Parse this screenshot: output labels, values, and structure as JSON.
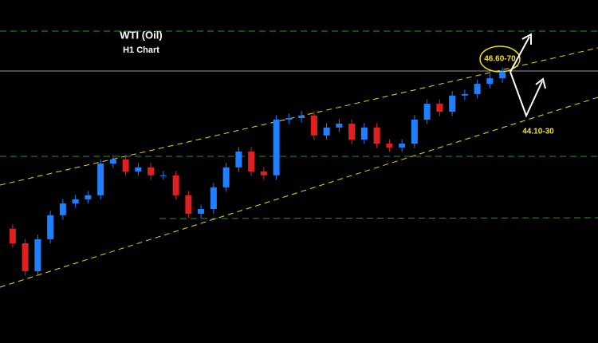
{
  "chart_data": {
    "type": "candlestick",
    "title": "WTI (Oil)",
    "subtitle": "H1 Chart",
    "annotations": [
      "46.60-70",
      "44.10-30"
    ],
    "up_color": "#1e7fff",
    "down_color": "#e02020",
    "ylim": [
      37.0,
      48.7
    ],
    "open": [
      40.9,
      40.4,
      39.45,
      40.54,
      41.36,
      41.76,
      41.9,
      42.04,
      43.12,
      43.26,
      42.85,
      42.99,
      42.72,
      42.72,
      42.04,
      41.41,
      41.57,
      42.31,
      42.99,
      43.53,
      42.85,
      42.72,
      44.62,
      44.67,
      44.76,
      44.08,
      44.35,
      44.48,
      43.94,
      44.35,
      43.8,
      43.67,
      43.8,
      44.62,
      45.16,
      44.89,
      45.44,
      45.49,
      45.84,
      46.03
    ],
    "high": [
      41.05,
      40.55,
      40.69,
      41.51,
      41.91,
      42.05,
      42.19,
      43.27,
      43.41,
      43.41,
      43.14,
      43.14,
      42.87,
      42.87,
      42.19,
      41.72,
      42.46,
      43.14,
      43.68,
      43.68,
      43.0,
      44.77,
      44.82,
      44.91,
      44.91,
      44.5,
      44.63,
      44.63,
      44.5,
      44.5,
      43.95,
      43.95,
      44.77,
      45.31,
      45.31,
      45.59,
      45.64,
      45.99,
      46.18,
      46.4
    ],
    "low": [
      40.25,
      39.3,
      39.3,
      40.39,
      41.21,
      41.61,
      41.75,
      41.89,
      42.97,
      42.7,
      42.7,
      42.57,
      42.57,
      41.89,
      41.26,
      41.26,
      41.42,
      42.16,
      42.84,
      42.7,
      42.57,
      42.57,
      44.47,
      44.52,
      43.93,
      43.93,
      44.2,
      43.79,
      43.79,
      43.65,
      43.52,
      43.52,
      43.65,
      44.47,
      44.74,
      44.74,
      45.29,
      45.34,
      45.69,
      45.88
    ],
    "close": [
      40.4,
      39.45,
      40.54,
      41.36,
      41.76,
      41.9,
      42.04,
      43.12,
      43.26,
      42.85,
      42.99,
      42.72,
      42.72,
      42.04,
      41.41,
      41.57,
      42.31,
      42.99,
      43.53,
      42.85,
      42.72,
      44.62,
      44.67,
      44.76,
      44.08,
      44.35,
      44.48,
      43.94,
      44.35,
      43.8,
      43.67,
      43.8,
      44.62,
      45.16,
      44.89,
      45.44,
      45.49,
      45.84,
      46.03,
      46.25
    ]
  }
}
